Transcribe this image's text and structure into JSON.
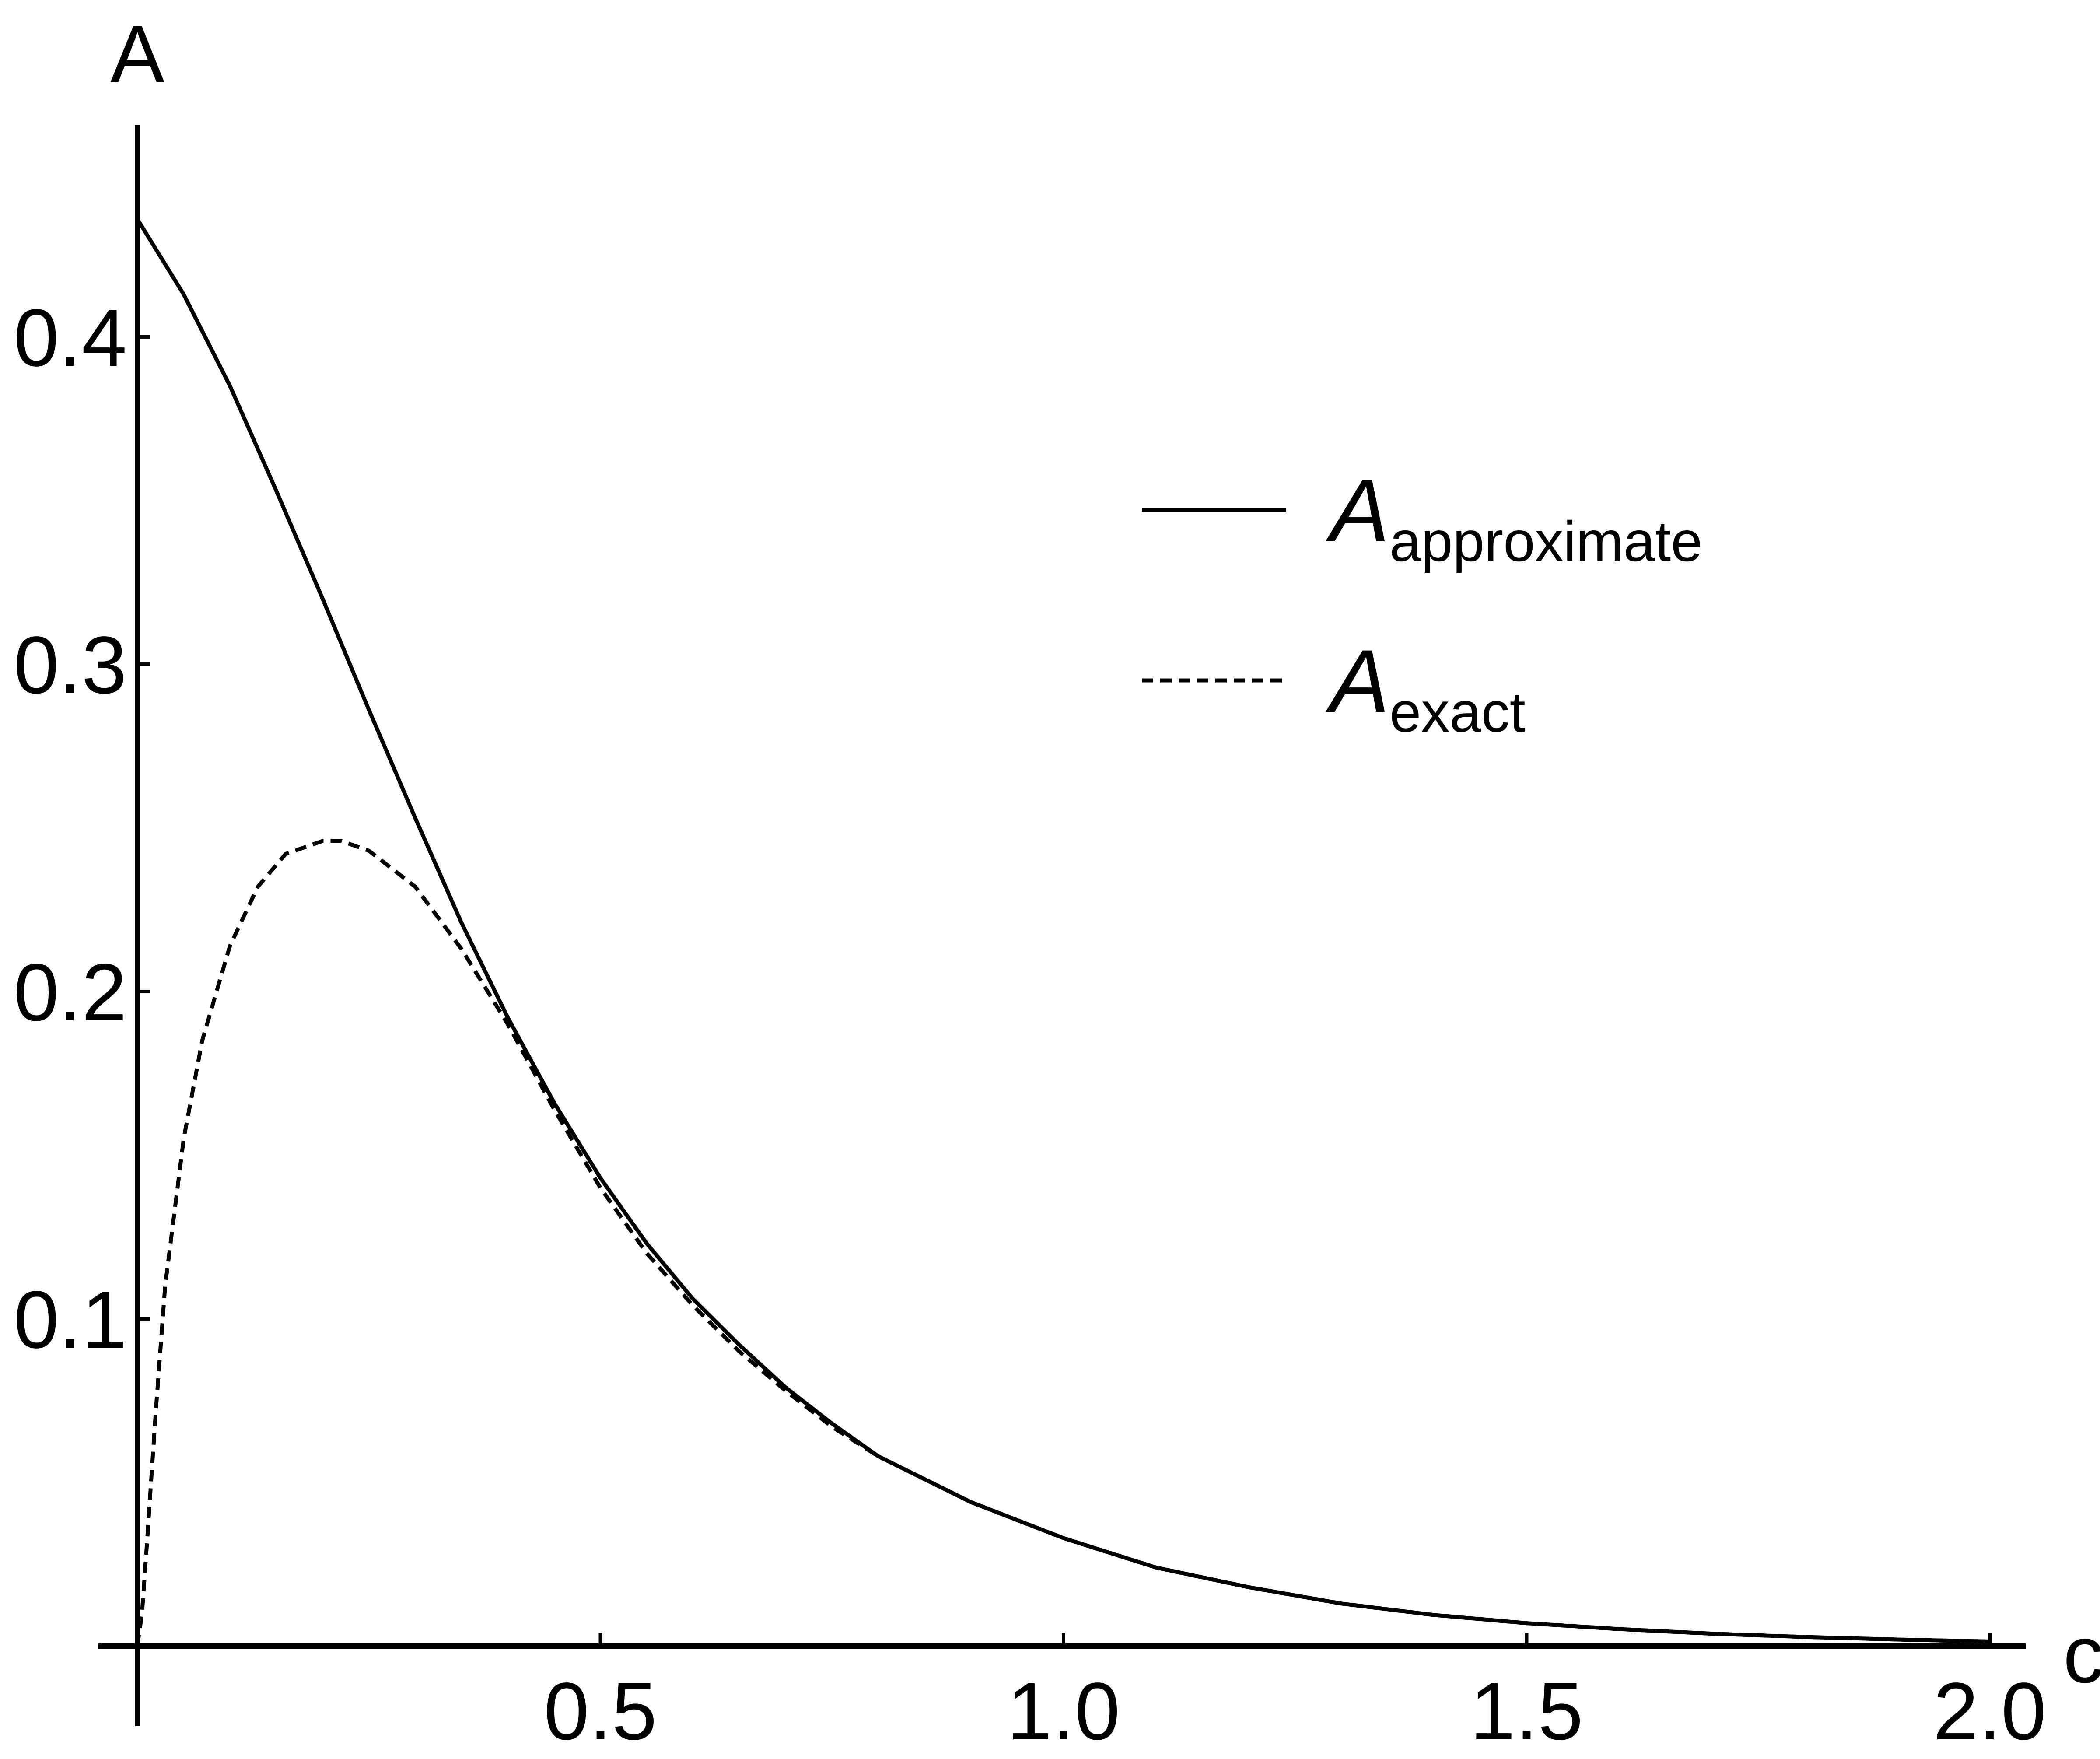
{
  "chart_data": {
    "type": "line",
    "xlabel": "c",
    "ylabel": "A",
    "xlim": [
      0,
      2.0
    ],
    "ylim": [
      0,
      0.46
    ],
    "grid": false,
    "legend_position": "top-right",
    "x_ticks": [
      {
        "value": 0.5,
        "label": "0.5"
      },
      {
        "value": 1.0,
        "label": "1.0"
      },
      {
        "value": 1.5,
        "label": "1.5"
      },
      {
        "value": 2.0,
        "label": "2.0"
      }
    ],
    "y_ticks": [
      {
        "value": 0.1,
        "label": "0.1"
      },
      {
        "value": 0.2,
        "label": "0.2"
      },
      {
        "value": 0.3,
        "label": "0.3"
      },
      {
        "value": 0.4,
        "label": "0.4"
      }
    ],
    "series": [
      {
        "name": "approximate",
        "legend_main": "A",
        "legend_sub": "approximate",
        "style": "solid",
        "color": "#000000",
        "x": [
          0,
          0.05,
          0.1,
          0.15,
          0.2,
          0.25,
          0.3,
          0.35,
          0.4,
          0.45,
          0.5,
          0.55,
          0.6,
          0.65,
          0.7,
          0.75,
          0.8,
          0.9,
          1.0,
          1.1,
          1.2,
          1.3,
          1.4,
          1.5,
          1.6,
          1.7,
          1.8,
          1.9,
          2.0
        ],
        "y": [
          0.436,
          0.413,
          0.385,
          0.353,
          0.32,
          0.286,
          0.253,
          0.221,
          0.192,
          0.166,
          0.143,
          0.123,
          0.106,
          0.092,
          0.079,
          0.068,
          0.058,
          0.044,
          0.033,
          0.024,
          0.018,
          0.013,
          0.0095,
          0.007,
          0.0052,
          0.0038,
          0.0028,
          0.002,
          0.0014
        ]
      },
      {
        "name": "exact",
        "legend_main": "A",
        "legend_sub": "exact",
        "style": "dashed",
        "color": "#000000",
        "x": [
          0,
          0.005,
          0.01,
          0.02,
          0.03,
          0.05,
          0.07,
          0.1,
          0.13,
          0.16,
          0.2,
          0.22,
          0.25,
          0.3,
          0.35,
          0.4,
          0.45,
          0.5,
          0.55,
          0.6,
          0.65,
          0.7,
          0.75,
          0.8,
          0.9,
          1.0,
          1.1,
          1.2,
          1.3,
          1.4,
          1.5,
          1.6,
          1.7,
          1.8,
          1.9,
          2.0
        ],
        "y": [
          0.0,
          0.01,
          0.03,
          0.072,
          0.11,
          0.155,
          0.185,
          0.214,
          0.232,
          0.242,
          0.246,
          0.246,
          0.243,
          0.232,
          0.213,
          0.19,
          0.164,
          0.14,
          0.12,
          0.104,
          0.09,
          0.078,
          0.067,
          0.058,
          0.044,
          0.033,
          0.024,
          0.018,
          0.013,
          0.0095,
          0.007,
          0.0052,
          0.0038,
          0.0028,
          0.002,
          0.0014
        ]
      }
    ]
  }
}
